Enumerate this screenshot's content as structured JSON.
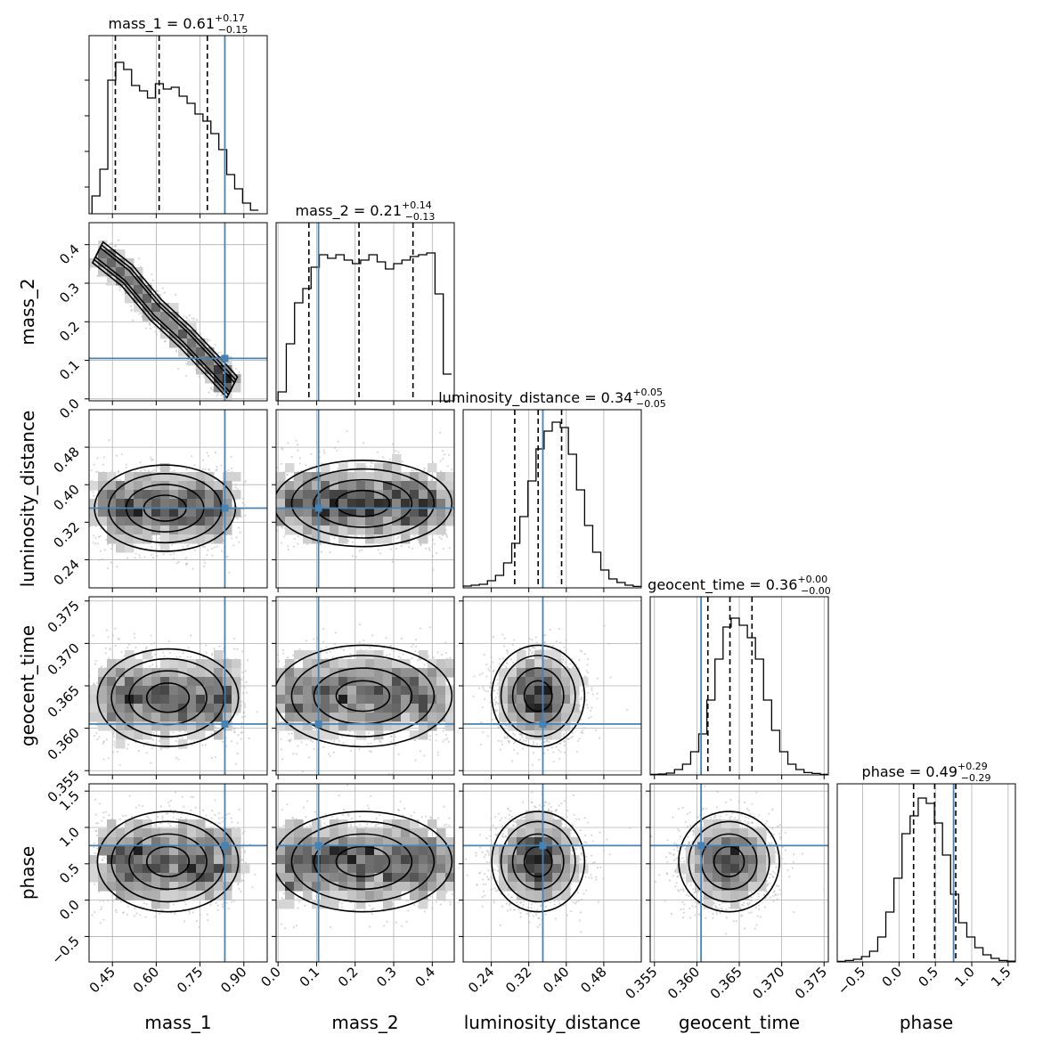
{
  "chart_data": {
    "type": "corner",
    "parameters": [
      "mass_1",
      "mass_2",
      "luminosity_distance",
      "geocent_time",
      "phase"
    ],
    "axis_labels": [
      "mass_1",
      "mass_2",
      "luminosity_distance",
      "geocent_time",
      "phase"
    ],
    "ranges": {
      "mass_1": [
        0.37,
        0.98
      ],
      "mass_2": [
        -0.005,
        0.457
      ],
      "luminosity_distance": [
        0.18,
        0.56
      ],
      "geocent_time": [
        0.3545,
        0.3755
      ],
      "phase": [
        -0.85,
        1.6
      ]
    },
    "ticks": {
      "mass_1": {
        "values": [
          0.45,
          0.6,
          0.75,
          0.9
        ],
        "labels": [
          "0.45",
          "0.60",
          "0.75",
          "0.90"
        ]
      },
      "mass_2": {
        "values": [
          0.0,
          0.1,
          0.2,
          0.3,
          0.4
        ],
        "labels": [
          "0.0",
          "0.1",
          "0.2",
          "0.3",
          "0.4"
        ]
      },
      "luminosity_distance": {
        "values": [
          0.24,
          0.32,
          0.4,
          0.48
        ],
        "labels": [
          "0.24",
          "0.32",
          "0.40",
          "0.48"
        ]
      },
      "geocent_time": {
        "values": [
          0.355,
          0.36,
          0.365,
          0.37,
          0.375
        ],
        "labels": [
          "0.355",
          "0.360",
          "0.365",
          "0.370",
          "0.375"
        ]
      },
      "phase": {
        "values": [
          -0.5,
          0.0,
          0.5,
          1.0,
          1.5
        ],
        "labels": [
          "−0.5",
          "0.0",
          "0.5",
          "1.0",
          "1.5"
        ]
      }
    },
    "truths": {
      "mass_1": 0.835,
      "mass_2": 0.105,
      "luminosity_distance": 0.35,
      "geocent_time": 0.3605,
      "phase": 0.75
    },
    "truth_color": "#4682b4",
    "titles": [
      {
        "param": "mass_1",
        "text": "mass_1 = 0.61",
        "sup": "+0.17",
        "sub": "−0.15"
      },
      {
        "param": "mass_2",
        "text": "mass_2 = 0.21",
        "sup": "+0.14",
        "sub": "−0.13"
      },
      {
        "param": "luminosity_distance",
        "text": "luminosity_distance = 0.34",
        "sup": "+0.05",
        "sub": "−0.05"
      },
      {
        "param": "geocent_time",
        "text": "geocent_time = 0.36",
        "sup": "+0.00",
        "sub": "−0.00"
      },
      {
        "param": "phase",
        "text": "phase = 0.49",
        "sup": "+0.29",
        "sub": "−0.29"
      }
    ],
    "quantiles": {
      "mass_1": [
        0.46,
        0.61,
        0.775
      ],
      "mass_2": [
        0.08,
        0.21,
        0.35
      ],
      "luminosity_distance": [
        0.29,
        0.34,
        0.39
      ],
      "geocent_time": [
        0.3613,
        0.3639,
        0.3665
      ],
      "phase": [
        0.2,
        0.49,
        0.78
      ]
    },
    "histograms": {
      "mass_1": [
        0.38,
        0.95,
        0.1,
        0.25,
        0.75,
        0.85,
        0.81,
        0.72,
        0.69,
        0.65,
        0.73,
        0.7,
        0.71,
        0.66,
        0.62,
        0.56,
        0.52,
        0.45,
        0.36,
        0.22,
        0.14,
        0.06,
        0.02
      ],
      "mass_2": [
        0.0,
        0.45,
        0.05,
        0.32,
        0.55,
        0.63,
        0.75,
        0.82,
        0.8,
        0.82,
        0.79,
        0.77,
        0.79,
        0.82,
        0.78,
        0.74,
        0.77,
        0.79,
        0.81,
        0.82,
        0.83,
        0.6,
        0.15
      ],
      "luminosity_distance": [
        0.18,
        0.56,
        0.01,
        0.015,
        0.02,
        0.04,
        0.07,
        0.14,
        0.25,
        0.4,
        0.6,
        0.78,
        0.88,
        0.93,
        0.9,
        0.75,
        0.55,
        0.35,
        0.2,
        0.1,
        0.05,
        0.03,
        0.015,
        0.008
      ],
      "geocent_time": [
        0.3545,
        0.3755,
        0.003,
        0.005,
        0.01,
        0.03,
        0.06,
        0.13,
        0.23,
        0.42,
        0.65,
        0.83,
        0.88,
        0.84,
        0.77,
        0.65,
        0.42,
        0.25,
        0.13,
        0.06,
        0.03,
        0.013,
        0.008,
        0.003
      ],
      "phase": [
        -0.85,
        1.6,
        0.003,
        0.008,
        0.015,
        0.03,
        0.06,
        0.14,
        0.28,
        0.47,
        0.72,
        0.82,
        0.92,
        0.89,
        0.78,
        0.6,
        0.38,
        0.22,
        0.14,
        0.08,
        0.04,
        0.02,
        0.008,
        0.004
      ]
    },
    "densities_2d": [
      {
        "x": "mass_1",
        "y": "mass_2",
        "shape": "correlated",
        "ridge": [
          [
            0.4,
            0.38
          ],
          [
            0.5,
            0.32
          ],
          [
            0.6,
            0.23
          ],
          [
            0.7,
            0.16
          ],
          [
            0.8,
            0.08
          ],
          [
            0.86,
            0.03
          ]
        ],
        "width": 0.045
      },
      {
        "x": "mass_1",
        "y": "luminosity_distance",
        "shape": "band",
        "center": [
          0.63,
          0.35
        ],
        "spread": [
          0.23,
          0.04
        ]
      },
      {
        "x": "mass_2",
        "y": "luminosity_distance",
        "shape": "band",
        "center": [
          0.22,
          0.36
        ],
        "spread": [
          0.22,
          0.04
        ]
      },
      {
        "x": "mass_1",
        "y": "geocent_time",
        "shape": "band",
        "center": [
          0.64,
          0.3636
        ],
        "spread": [
          0.23,
          0.0025
        ]
      },
      {
        "x": "mass_2",
        "y": "geocent_time",
        "shape": "band",
        "center": [
          0.22,
          0.3638
        ],
        "spread": [
          0.22,
          0.0026
        ]
      },
      {
        "x": "luminosity_distance",
        "y": "geocent_time",
        "shape": "blob",
        "center": [
          0.34,
          0.3638
        ],
        "spread": [
          0.045,
          0.0026
        ]
      },
      {
        "x": "mass_1",
        "y": "phase",
        "shape": "band",
        "center": [
          0.64,
          0.53
        ],
        "spread": [
          0.23,
          0.3
        ]
      },
      {
        "x": "mass_2",
        "y": "phase",
        "shape": "band",
        "center": [
          0.22,
          0.53
        ],
        "spread": [
          0.22,
          0.3
        ]
      },
      {
        "x": "luminosity_distance",
        "y": "phase",
        "shape": "blob",
        "center": [
          0.34,
          0.53
        ],
        "spread": [
          0.045,
          0.3
        ]
      },
      {
        "x": "geocent_time",
        "y": "phase",
        "shape": "blob",
        "center": [
          0.3638,
          0.53
        ],
        "spread": [
          0.0027,
          0.3
        ]
      }
    ],
    "grid": true
  }
}
